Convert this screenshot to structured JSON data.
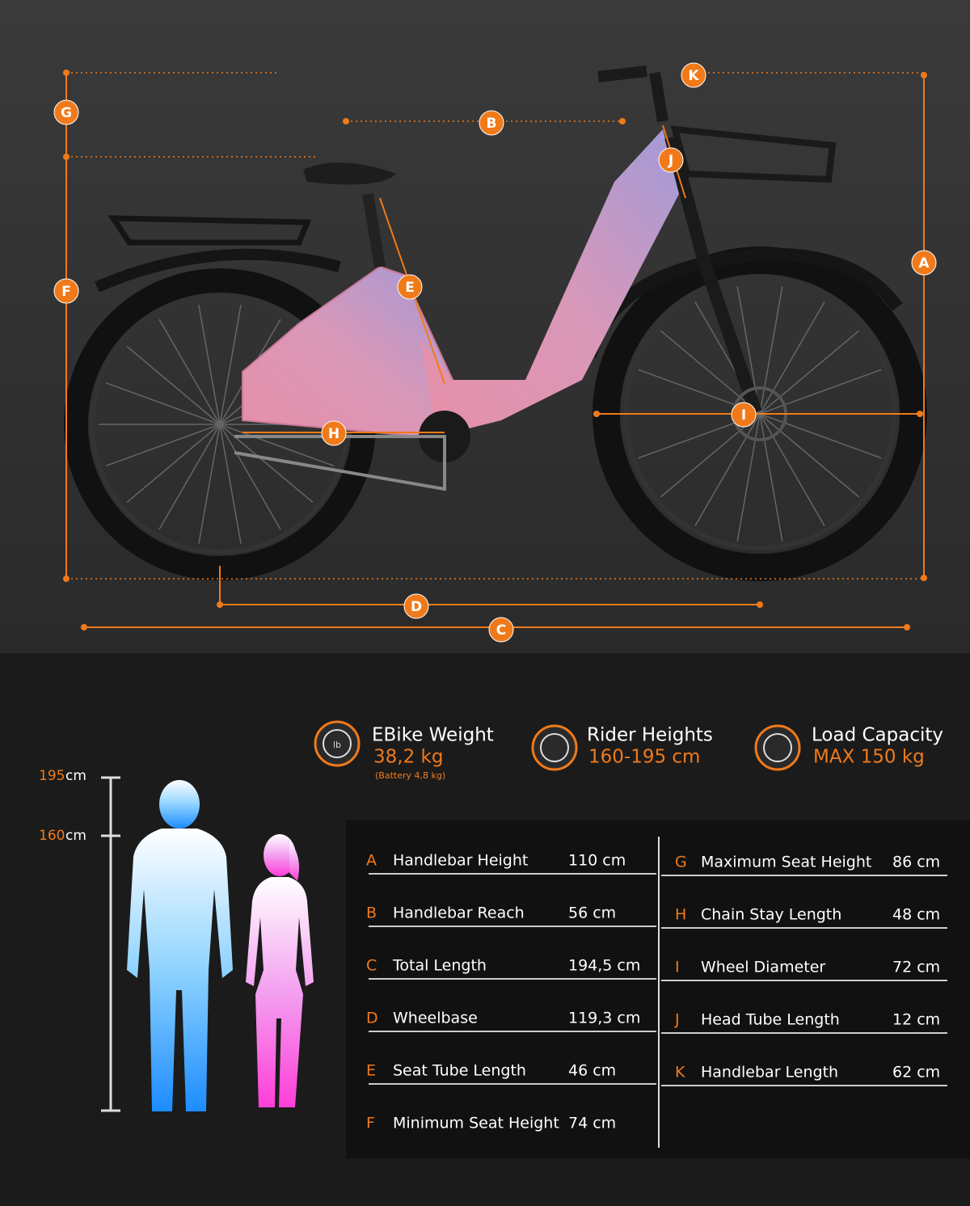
{
  "diagram": {
    "markers": [
      "A",
      "B",
      "C",
      "D",
      "E",
      "F",
      "G",
      "H",
      "I",
      "J",
      "K"
    ]
  },
  "specs": [
    {
      "title": "EBike Weight",
      "value": "38,2 kg",
      "note": "(Battery 4,8 kg)",
      "icon_label": "lb"
    },
    {
      "title": "Rider Heights",
      "value": "160-195 cm"
    },
    {
      "title": "Load Capacity",
      "value": "MAX 150 kg"
    }
  ],
  "height_scale": [
    {
      "value": "195",
      "unit": "cm"
    },
    {
      "value": "160",
      "unit": "cm"
    }
  ],
  "table": {
    "left": [
      {
        "key": "A",
        "label": "Handlebar Height",
        "value": "110 cm"
      },
      {
        "key": "B",
        "label": "Handlebar Reach",
        "value": "56 cm"
      },
      {
        "key": "C",
        "label": "Total Length",
        "value": "194,5 cm"
      },
      {
        "key": "D",
        "label": "Wheelbase",
        "value": "119,3 cm"
      },
      {
        "key": "E",
        "label": "Seat Tube Length",
        "value": "46 cm"
      },
      {
        "key": "F",
        "label": "Minimum Seat Height",
        "value": "74 cm"
      }
    ],
    "right": [
      {
        "key": "G",
        "label": "Maximum Seat Height",
        "value": "86 cm"
      },
      {
        "key": "H",
        "label": "Chain Stay Length",
        "value": "48 cm"
      },
      {
        "key": "I",
        "label": "Wheel Diameter",
        "value": "72 cm"
      },
      {
        "key": "J",
        "label": "Head Tube Length",
        "value": "12 cm"
      },
      {
        "key": "K",
        "label": "Handlebar Length",
        "value": "62 cm"
      }
    ]
  }
}
